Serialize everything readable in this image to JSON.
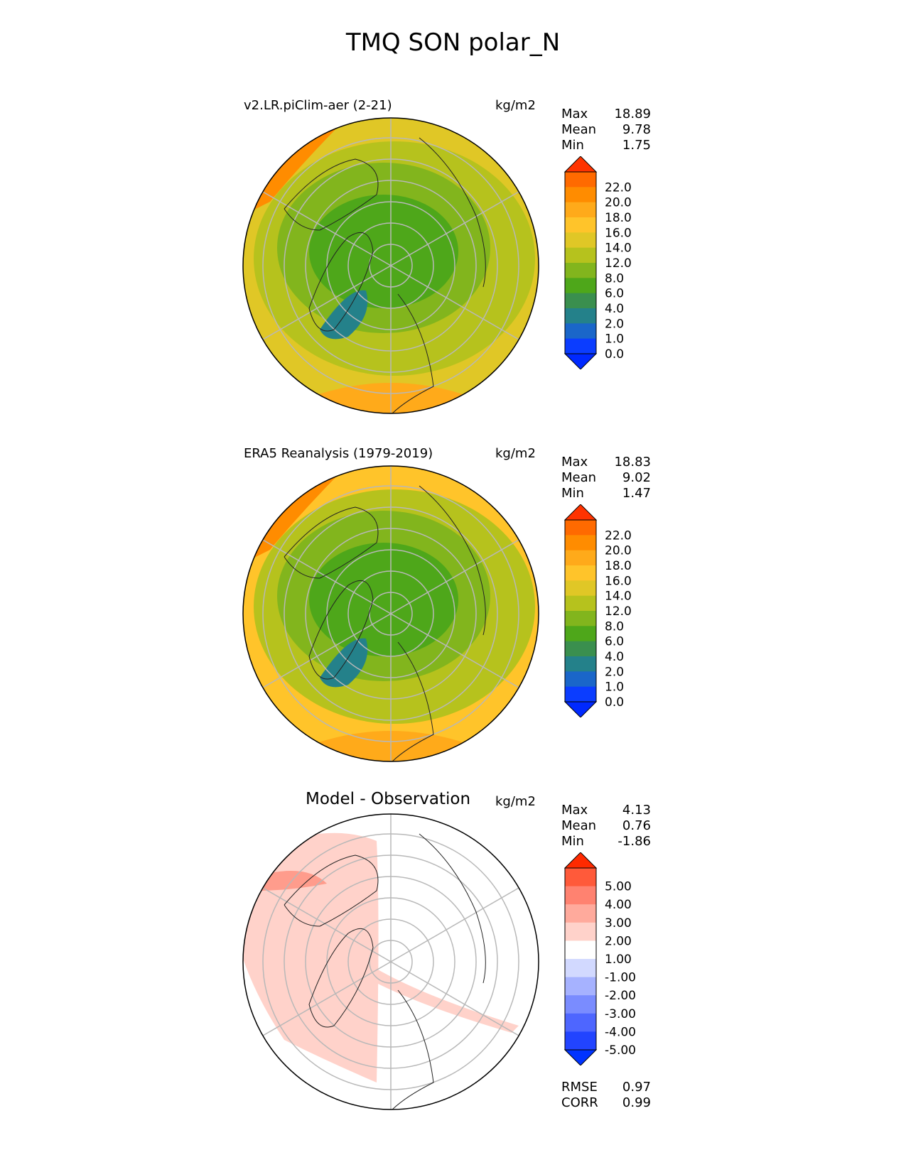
{
  "title": "TMQ SON polar_N",
  "chart_data": [
    {
      "type": "heatmap",
      "projection": "north polar stereographic",
      "title": "v2.LR.piClim-aer (2-21)",
      "units": "kg/m2",
      "stats": {
        "max_label": "Max",
        "max": "18.89",
        "mean_label": "Mean",
        "mean": "9.78",
        "min_label": "Min",
        "min": "1.75"
      },
      "colorbar": {
        "tick_labels": [
          "22.0",
          "20.0",
          "18.0",
          "16.0",
          "14.0",
          "12.0",
          "8.0",
          "6.0",
          "4.0",
          "2.0",
          "1.0",
          "0.0"
        ],
        "colors": [
          "#ff3300",
          "#ff6a00",
          "#ff8c00",
          "#ffaa1a",
          "#ffc42a",
          "#e0c726",
          "#b6c21d",
          "#82b51d",
          "#4ea71a",
          "#3a8f4e",
          "#24818a",
          "#1a66c9",
          "#0b3dff",
          "#0029ff"
        ]
      },
      "fields": {
        "ring_color": "#b6c21d",
        "mid_color": "#82b51d",
        "core_color": "#4ea71a",
        "low_color": "#24818a",
        "edge_color": "#e0c726",
        "hot_color": "#ff8c00"
      }
    },
    {
      "type": "heatmap",
      "projection": "north polar stereographic",
      "title": "ERA5 Reanalysis (1979-2019)",
      "units": "kg/m2",
      "stats": {
        "max_label": "Max",
        "max": "18.83",
        "mean_label": "Mean",
        "mean": "9.02",
        "min_label": "Min",
        "min": "1.47"
      },
      "colorbar": {
        "tick_labels": [
          "22.0",
          "20.0",
          "18.0",
          "16.0",
          "14.0",
          "12.0",
          "8.0",
          "6.0",
          "4.0",
          "2.0",
          "1.0",
          "0.0"
        ],
        "colors": [
          "#ff3300",
          "#ff6a00",
          "#ff8c00",
          "#ffaa1a",
          "#ffc42a",
          "#e0c726",
          "#b6c21d",
          "#82b51d",
          "#4ea71a",
          "#3a8f4e",
          "#24818a",
          "#1a66c9",
          "#0b3dff",
          "#0029ff"
        ]
      },
      "fields": {
        "ring_color": "#b6c21d",
        "mid_color": "#82b51d",
        "core_color": "#4ea71a",
        "low_color": "#24818a",
        "edge_color": "#ffc42a",
        "hot_color": "#ff8c00"
      }
    },
    {
      "type": "heatmap",
      "projection": "north polar stereographic",
      "title": "Model - Observation",
      "units": "kg/m2",
      "stats": {
        "max_label": "Max",
        "max": "4.13",
        "mean_label": "Mean",
        "mean": "0.76",
        "min_label": "Min",
        "min": "-1.86"
      },
      "colorbar": {
        "tick_labels": [
          "5.00",
          "4.00",
          "3.00",
          "2.00",
          "1.00",
          "-1.00",
          "-2.00",
          "-3.00",
          "-4.00",
          "-5.00"
        ],
        "colors": [
          "#ff2a00",
          "#ff5a3a",
          "#ff8270",
          "#ffaa9c",
          "#ffd2ca",
          "#ffffff",
          "#d2d9ff",
          "#a6b2ff",
          "#7a8cff",
          "#4e66ff",
          "#2244ff",
          "#0033ff"
        ]
      },
      "footer": {
        "rmse_label": "RMSE",
        "rmse": "0.97",
        "corr_label": "CORR",
        "corr": "0.99"
      },
      "fields": {
        "diff_color": "#ffd2ca",
        "diff_strong": "#ff9c8c"
      }
    }
  ]
}
